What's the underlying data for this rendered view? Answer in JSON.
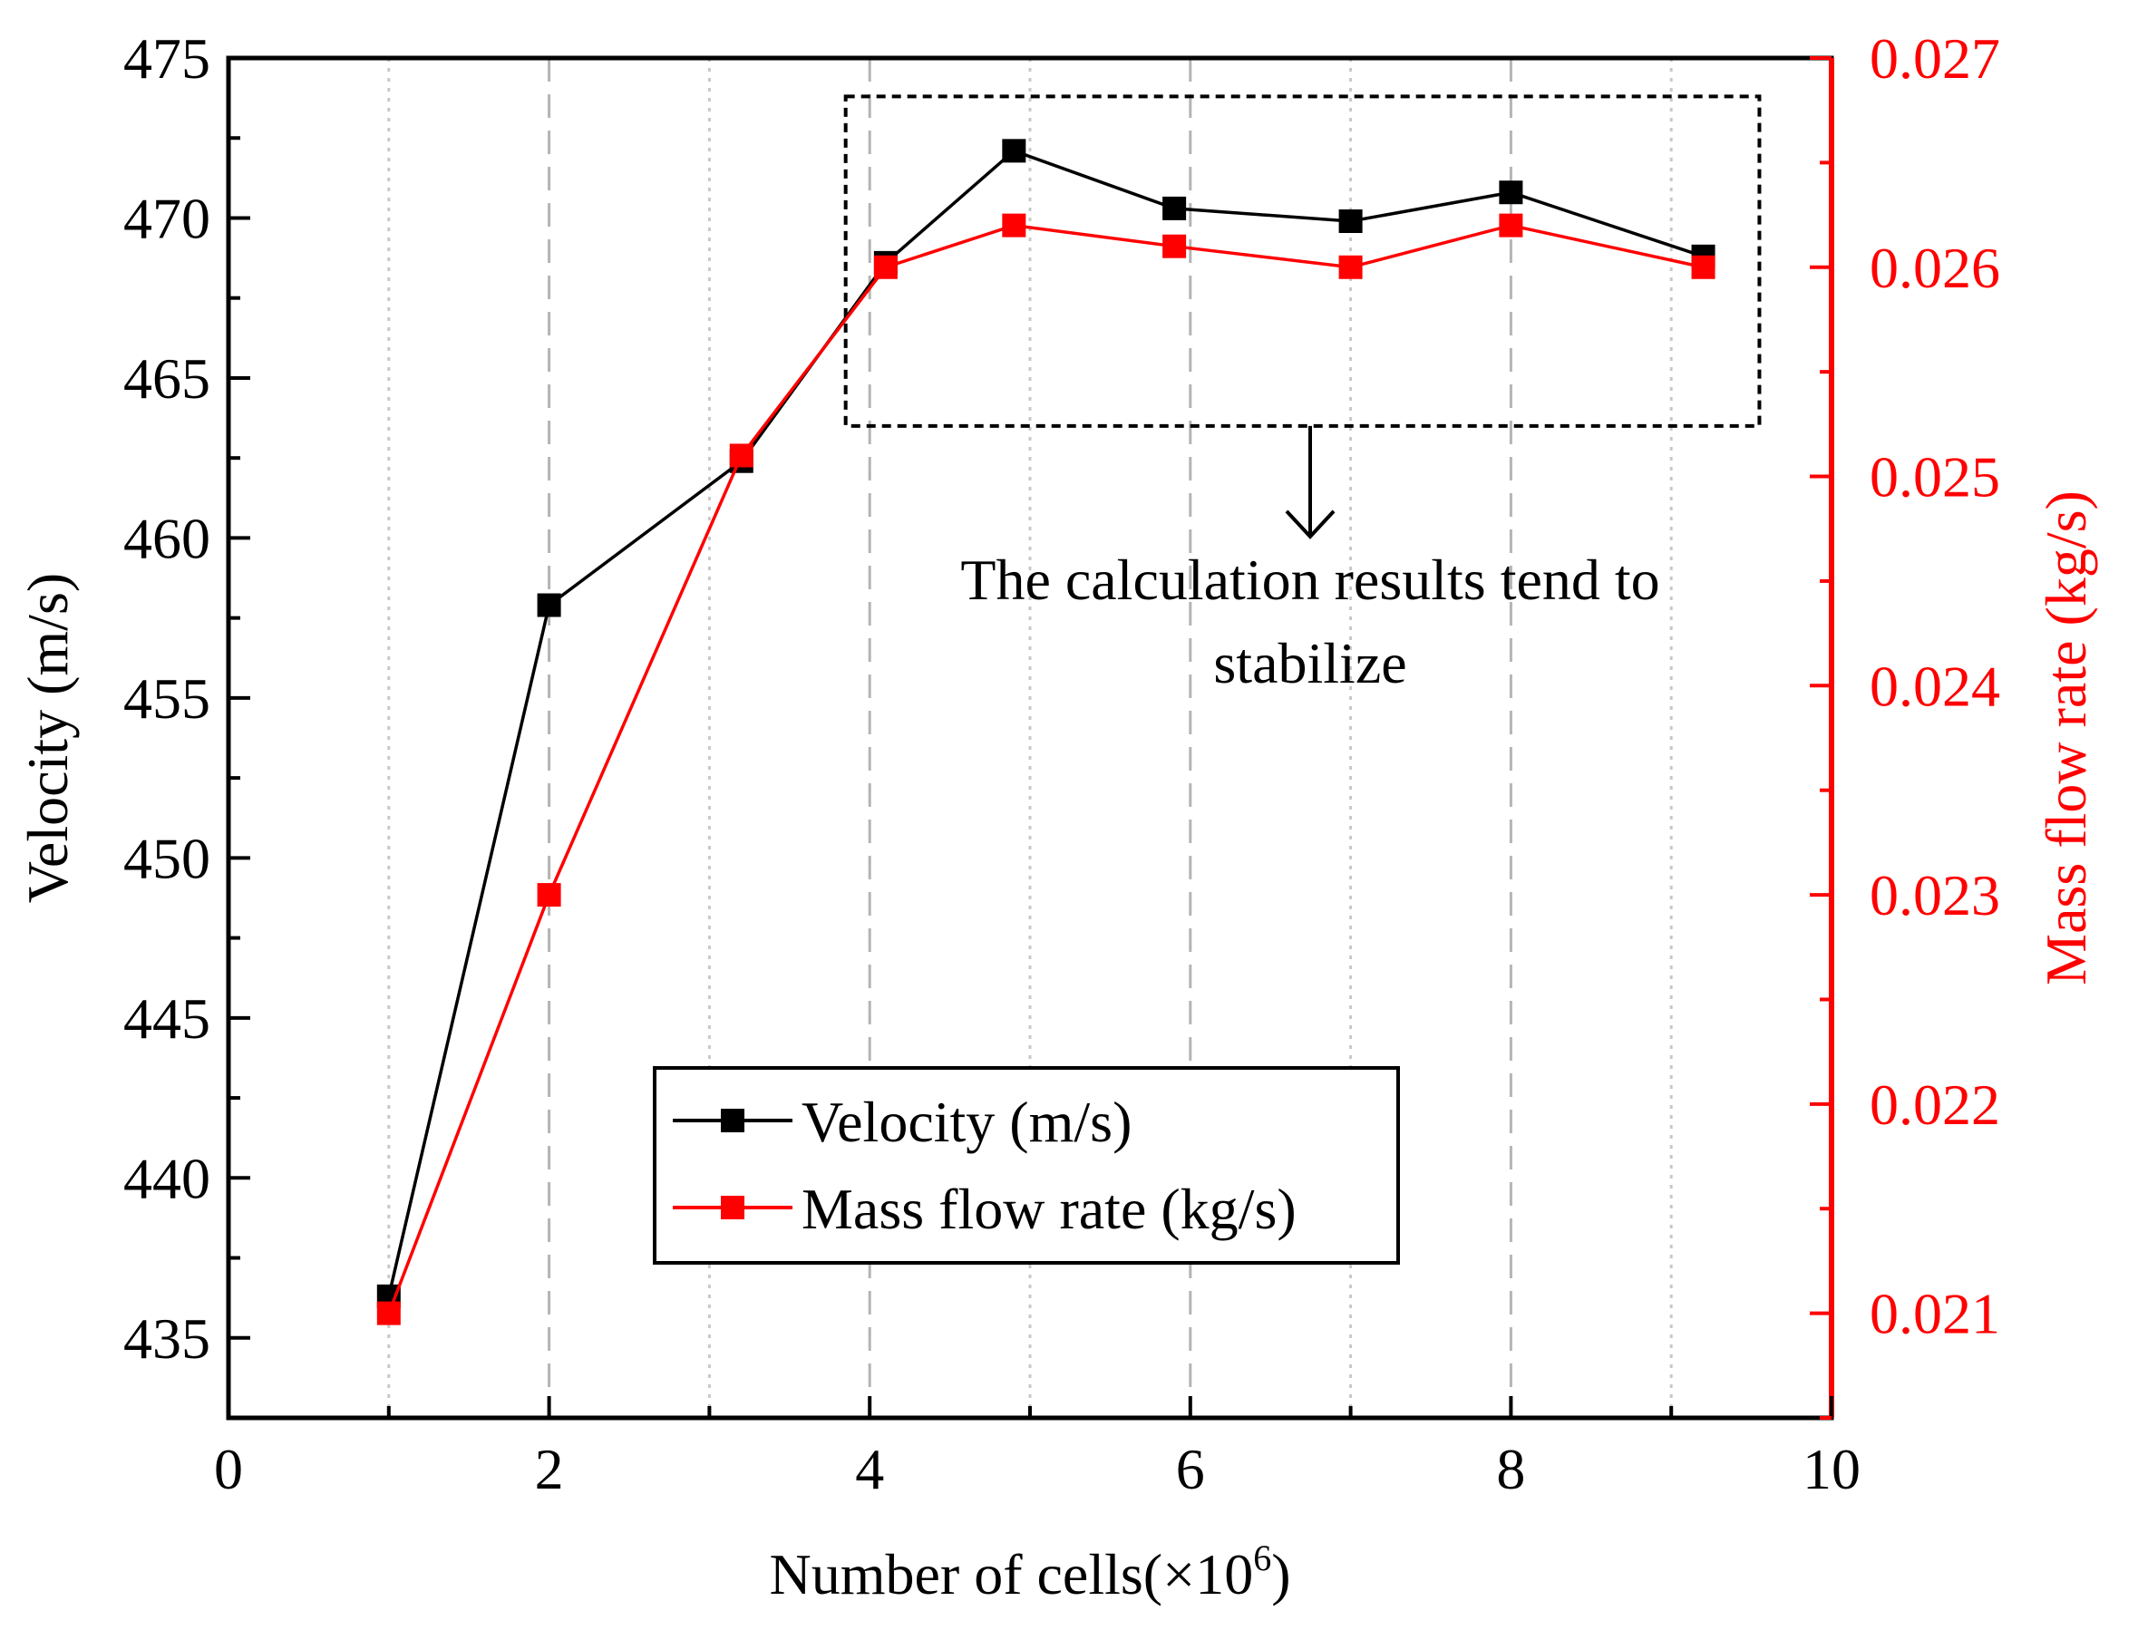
{
  "chart_data": {
    "type": "line",
    "title": "",
    "xlabel": "Number of cells(×10",
    "xlabel_sup": "6",
    "xlabel_close": ")",
    "ylabel": "Velocity (m/s)",
    "y2label": "Mass flow rate (kg/s)",
    "xlim": [
      0,
      10
    ],
    "ylim": [
      432.5,
      475
    ],
    "y2lim": [
      0.0205,
      0.027
    ],
    "x_ticks": [
      "0",
      "2",
      "4",
      "6",
      "8",
      "10"
    ],
    "y_ticks": [
      "435",
      "440",
      "445",
      "450",
      "455",
      "460",
      "465",
      "470",
      "475"
    ],
    "y2_ticks": [
      "0.021",
      "0.022",
      "0.023",
      "0.024",
      "0.025",
      "0.026",
      "0.027"
    ],
    "x": [
      1.0,
      2.0,
      3.2,
      4.1,
      4.9,
      5.9,
      7.0,
      8.0,
      9.2
    ],
    "series": [
      {
        "name": "Velocity (m/s)",
        "axis": "left",
        "color": "#000000",
        "marker": "square",
        "values": [
          436.3,
          457.9,
          462.4,
          468.6,
          472.1,
          470.3,
          469.9,
          470.8,
          468.8
        ]
      },
      {
        "name": "Mass flow rate (kg/s)",
        "axis": "right",
        "color": "#ff0000",
        "marker": "square",
        "values": [
          0.021,
          0.023,
          0.0251,
          0.026,
          0.0262,
          0.0261,
          0.026,
          0.0262,
          0.026
        ]
      }
    ],
    "annotation": {
      "text_line1": "The calculation results tend to",
      "text_line2": "stabilize",
      "box_x_range": [
        3.85,
        9.55
      ],
      "box_y_range": [
        463.5,
        473.8
      ]
    },
    "legend_placement": "lower-center"
  }
}
